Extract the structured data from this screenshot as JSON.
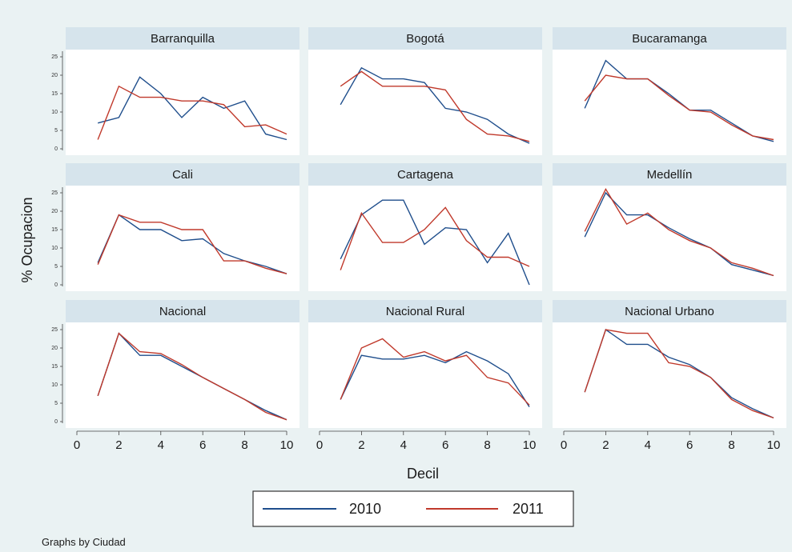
{
  "chart_data": {
    "type": "line",
    "facet_by": "Ciudad",
    "xlabel": "Decil",
    "ylabel": "% Ocupacion",
    "xlim": [
      0,
      10
    ],
    "ylim": [
      0,
      25
    ],
    "xticks": [
      0,
      2,
      4,
      6,
      8,
      10
    ],
    "yticks": [
      0,
      5,
      10,
      15,
      20,
      25
    ],
    "legend": {
      "position": "bottom",
      "entries": [
        "2010",
        "2011"
      ]
    },
    "note": "Graphs by Ciudad",
    "colors": {
      "2010": "#1f4e8c",
      "2011": "#c0392b",
      "strip": "#d6e4ec",
      "plot_bg": "#ffffff",
      "page_bg": "#eaf2f3"
    },
    "panels": [
      {
        "title": "Barranquilla",
        "x": [
          1,
          2,
          3,
          4,
          5,
          6,
          7,
          8,
          9,
          10
        ],
        "series": [
          {
            "name": "2010",
            "values": [
              7,
              8.5,
              19.5,
              15,
              8.5,
              14,
              11,
              13,
              4,
              2.5
            ]
          },
          {
            "name": "2011",
            "values": [
              2.5,
              17,
              14,
              14,
              13,
              13,
              12,
              6,
              6.5,
              4
            ]
          }
        ]
      },
      {
        "title": "Bogotá",
        "x": [
          1,
          2,
          3,
          4,
          5,
          6,
          7,
          8,
          9,
          10
        ],
        "series": [
          {
            "name": "2010",
            "values": [
              12,
              22,
              19,
              19,
              18,
              11,
              10,
              8,
              4,
              1.5
            ]
          },
          {
            "name": "2011",
            "values": [
              17,
              21,
              17,
              17,
              17,
              16,
              8,
              4,
              3.5,
              2
            ]
          }
        ]
      },
      {
        "title": "Bucaramanga",
        "x": [
          1,
          2,
          3,
          4,
          5,
          6,
          7,
          8,
          9,
          10
        ],
        "series": [
          {
            "name": "2010",
            "values": [
              11,
              24,
              19,
              19,
              15,
              10.5,
              10.5,
              7,
              3.5,
              2
            ]
          },
          {
            "name": "2011",
            "values": [
              13,
              20,
              19,
              19,
              14.5,
              10.5,
              10,
              6.5,
              3.5,
              2.5
            ]
          }
        ]
      },
      {
        "title": "Cali",
        "x": [
          1,
          2,
          3,
          4,
          5,
          6,
          7,
          8,
          9,
          10
        ],
        "series": [
          {
            "name": "2010",
            "values": [
              6,
              19,
              15,
              15,
              12,
              12.5,
              8.5,
              6.5,
              5,
              3
            ]
          },
          {
            "name": "2011",
            "values": [
              5.5,
              19,
              17,
              17,
              15,
              15,
              6.5,
              6.5,
              4.5,
              3
            ]
          }
        ]
      },
      {
        "title": "Cartagena",
        "x": [
          1,
          2,
          3,
          4,
          5,
          6,
          7,
          8,
          9,
          10
        ],
        "series": [
          {
            "name": "2010",
            "values": [
              7,
              19,
              23,
              23,
              11,
              15.5,
              15,
              6,
              14,
              0
            ]
          },
          {
            "name": "2011",
            "values": [
              4,
              19.5,
              11.5,
              11.5,
              15,
              21,
              12,
              7.5,
              7.5,
              5
            ]
          }
        ]
      },
      {
        "title": "Medellín",
        "x": [
          1,
          2,
          3,
          4,
          5,
          6,
          7,
          8,
          9,
          10
        ],
        "series": [
          {
            "name": "2010",
            "values": [
              13,
              25,
              19,
              19,
              15.5,
              12.5,
              10,
              5.5,
              4,
              2.5
            ]
          },
          {
            "name": "2011",
            "values": [
              14.5,
              26,
              16.5,
              19.5,
              15,
              12,
              10,
              6,
              4.5,
              2.5
            ]
          }
        ]
      },
      {
        "title": "Nacional",
        "x": [
          1,
          2,
          3,
          4,
          5,
          6,
          7,
          8,
          9,
          10
        ],
        "series": [
          {
            "name": "2010",
            "values": [
              7,
              24,
              18,
              18,
              15,
              12,
              9,
              6,
              3,
              0.5
            ]
          },
          {
            "name": "2011",
            "values": [
              7,
              24,
              19,
              18.5,
              15.5,
              12,
              9,
              6,
              2.5,
              0.5
            ]
          }
        ]
      },
      {
        "title": "Nacional Rural",
        "x": [
          1,
          2,
          3,
          4,
          5,
          6,
          7,
          8,
          9,
          10
        ],
        "series": [
          {
            "name": "2010",
            "values": [
              6,
              18,
              17,
              17,
              18,
              16,
              19,
              16.5,
              13,
              4
            ]
          },
          {
            "name": "2011",
            "values": [
              6,
              20,
              22.5,
              17.5,
              19,
              16.5,
              18,
              12,
              10.5,
              4.5
            ]
          }
        ]
      },
      {
        "title": "Nacional Urbano",
        "x": [
          1,
          2,
          3,
          4,
          5,
          6,
          7,
          8,
          9,
          10
        ],
        "series": [
          {
            "name": "2010",
            "values": [
              8,
              25,
              21,
              21,
              17.5,
              15.5,
              12,
              6.5,
              3.5,
              1
            ]
          },
          {
            "name": "2011",
            "values": [
              8,
              25,
              24,
              24,
              16,
              15,
              12,
              6,
              3,
              1
            ]
          }
        ]
      }
    ]
  }
}
